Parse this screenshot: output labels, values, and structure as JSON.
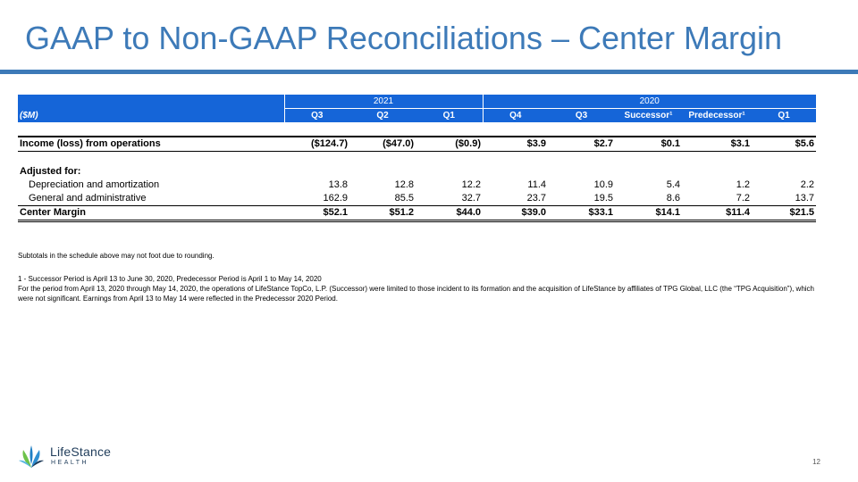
{
  "title": "GAAP to Non-GAAP Reconciliations – Center Margin",
  "table": {
    "unit_label": "($M)",
    "year_groups": [
      "2021",
      "2020"
    ],
    "periods": [
      "Q3",
      "Q2",
      "Q1",
      "Q4",
      "Q3",
      "Successor¹",
      "Predecessor¹",
      "Q1"
    ],
    "rows": {
      "income": {
        "label": "Income (loss) from operations",
        "values": [
          "($124.7)",
          "($47.0)",
          "($0.9)",
          "$3.9",
          "$2.7",
          "$0.1",
          "$3.1",
          "$5.6"
        ]
      },
      "adjusted_for": {
        "label": "Adjusted for:"
      },
      "depreciation": {
        "label": "Depreciation and amortization",
        "values": [
          "13.8",
          "12.8",
          "12.2",
          "11.4",
          "10.9",
          "5.4",
          "1.2",
          "2.2"
        ]
      },
      "ga": {
        "label": "General and administrative",
        "values": [
          "162.9",
          "85.5",
          "32.7",
          "23.7",
          "19.5",
          "8.6",
          "7.2",
          "13.7"
        ]
      },
      "center_margin": {
        "label": "Center Margin",
        "values": [
          "$52.1",
          "$51.2",
          "$44.0",
          "$39.0",
          "$33.1",
          "$14.1",
          "$11.4",
          "$21.5"
        ]
      }
    }
  },
  "notes": {
    "rounding": "Subtotals in the schedule above may not foot due to rounding.",
    "footnote1": "1 - Successor Period is April 13 to June 30, 2020, Predecessor Period is April 1 to May 14, 2020",
    "footnote2": "For the period from April 13, 2020 through May 14, 2020, the operations of LifeStance TopCo, L.P. (Successor) were limited to those incident to its formation and the acquisition of LifeStance by affiliates of TPG Global, LLC (the “TPG Acquisition”), which were not significant. Earnings from April 13 to May 14 were reflected in the Predecessor 2020 Period."
  },
  "logo": {
    "name": "LifeStance",
    "sub": "HEALTH",
    "colors": [
      "#6cc24a",
      "#2f8fd1",
      "#1f3c5a"
    ]
  },
  "page_number": "12",
  "colors": {
    "title": "#3d7ab8",
    "header_bg": "#1565d8"
  }
}
